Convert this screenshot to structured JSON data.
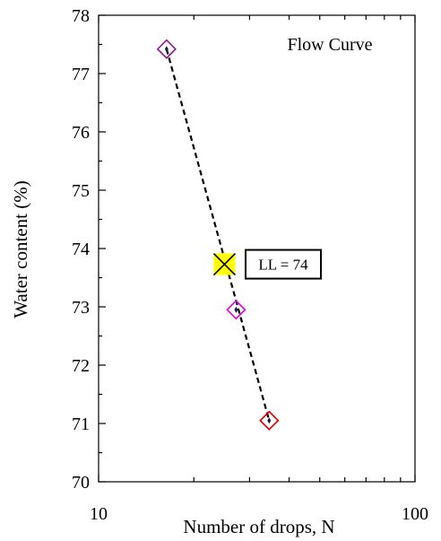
{
  "chart_data": {
    "type": "scatter",
    "x_scale": "log",
    "xlim": [
      10,
      100
    ],
    "ylim": [
      70,
      78
    ],
    "x_tick_labels": [
      "10",
      "100"
    ],
    "y_ticks": [
      70,
      71,
      72,
      73,
      74,
      75,
      76,
      77,
      78
    ],
    "xlabel": "Number of drops, N",
    "ylabel": "Water content (%)",
    "annotation": "Flow Curve",
    "points": [
      {
        "x": 16.4,
        "y": 77.42,
        "color": "#8b1a8b"
      },
      {
        "x": 27.2,
        "y": 72.95,
        "color": "#e000e0"
      },
      {
        "x": 34.6,
        "y": 71.05,
        "color": "#e00000"
      }
    ],
    "trend_line": {
      "x1": 16.4,
      "y1": 77.42,
      "x2": 34.6,
      "y2": 71.05,
      "style": "dashed",
      "color": "#000000"
    },
    "liquid_limit": {
      "x": 25,
      "y": 73.73,
      "label": "LL = 74",
      "marker_color": "#ffff00"
    },
    "grid": false
  }
}
